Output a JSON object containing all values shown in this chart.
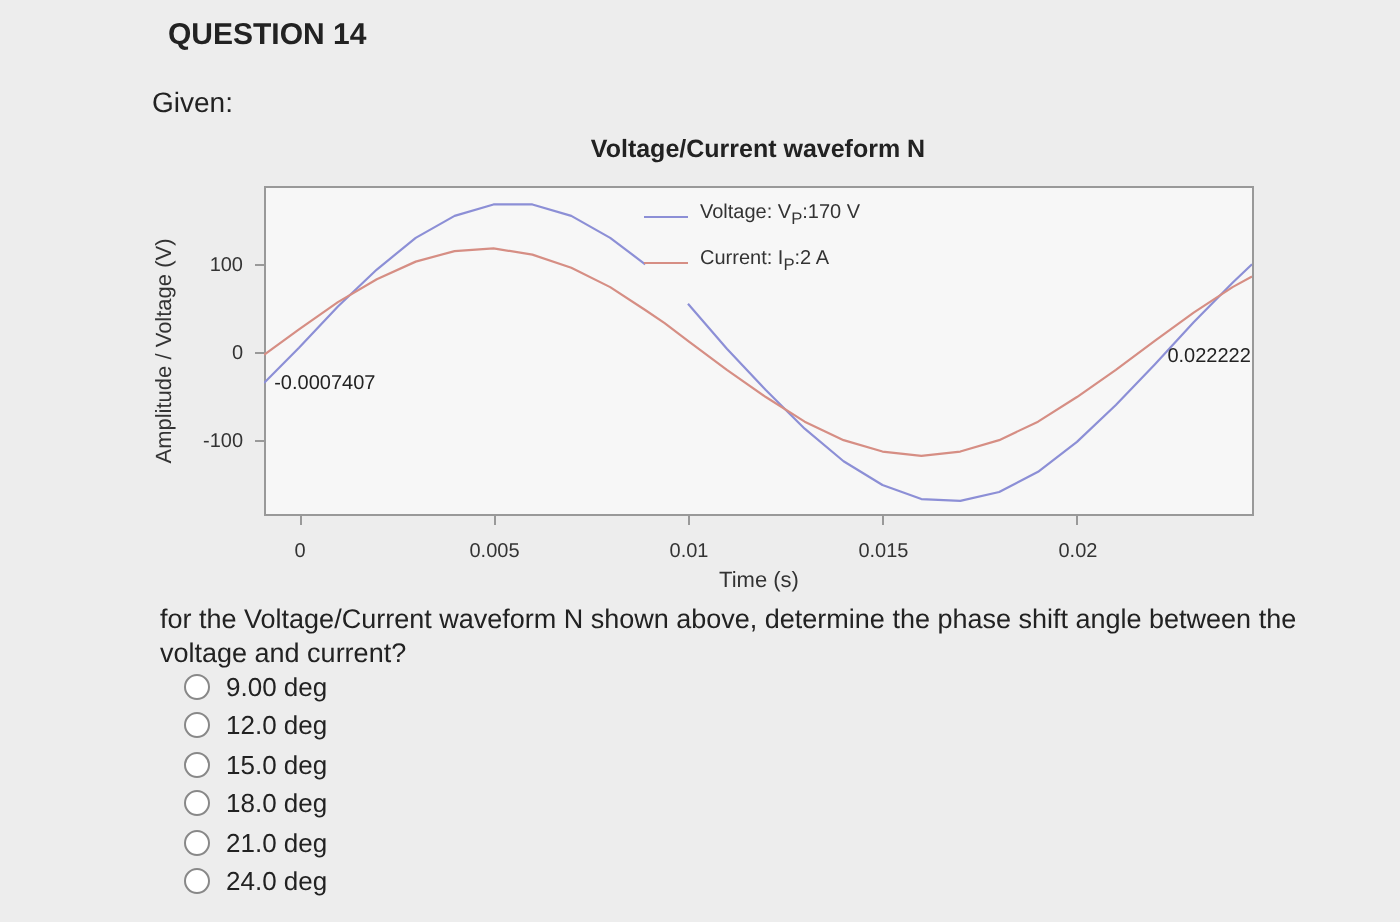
{
  "chart_data": {
    "type": "line",
    "title": "Voltage/Current waveform N",
    "xlabel": "Time (s)",
    "ylabel": "Amplitude / Voltage (V)",
    "x": [
      -0.0009,
      0,
      0.001,
      0.002,
      0.003,
      0.004,
      0.005,
      0.006,
      0.007,
      0.008,
      0.0089,
      0.0094,
      0.01,
      0.011,
      0.012,
      0.013,
      0.014,
      0.015,
      0.016,
      0.017,
      0.018,
      0.019,
      0.02,
      0.021,
      0.022,
      0.023,
      0.024,
      0.0245
    ],
    "series": [
      {
        "name": "Voltage: V$_{P}$:170 V",
        "color": "#8c8fd6",
        "values": [
          -35,
          5,
          52,
          94,
          130,
          155,
          168,
          168,
          155,
          130,
          100,
          null,
          55,
          4,
          -43,
          -87,
          -124,
          -151,
          -167,
          -169,
          -159,
          -136,
          -102,
          -60,
          -14,
          34,
          79,
          100
        ]
      },
      {
        "name": "Current: I$_{P}$:2 A",
        "color": "#d68e84",
        "values": [
          -3,
          26,
          57,
          83,
          103,
          115,
          118,
          111,
          96,
          74,
          48,
          33,
          13,
          -20,
          -51,
          -79,
          -100,
          -113,
          -118,
          -113,
          -100,
          -79,
          -51,
          -20,
          13,
          45,
          74,
          86
        ]
      }
    ],
    "xlim": [
      -0.0009,
      0.0245
    ],
    "xticks": [
      0,
      0.005,
      0.01,
      0.015,
      0.02
    ],
    "ylim": [
      -184,
      189
    ],
    "yticks": [
      -100,
      0,
      100
    ],
    "legend": "top",
    "line_style": "solid",
    "annotations": [
      "QUESTION 14",
      "Given:",
      "for the Voltage/Current waveform N shown above, determine the phase shift angle between the voltage and current?",
      "9.00 deg",
      "12.0 deg",
      "15.0 deg",
      "18.0 deg",
      "21.0 deg",
      "24.0 deg",
      {
        "text": "-0.0007407",
        "x": -0.0007407,
        "y": -30
      },
      {
        "text": "0.022222",
        "x": 0.022222,
        "y": 0
      }
    ]
  }
}
